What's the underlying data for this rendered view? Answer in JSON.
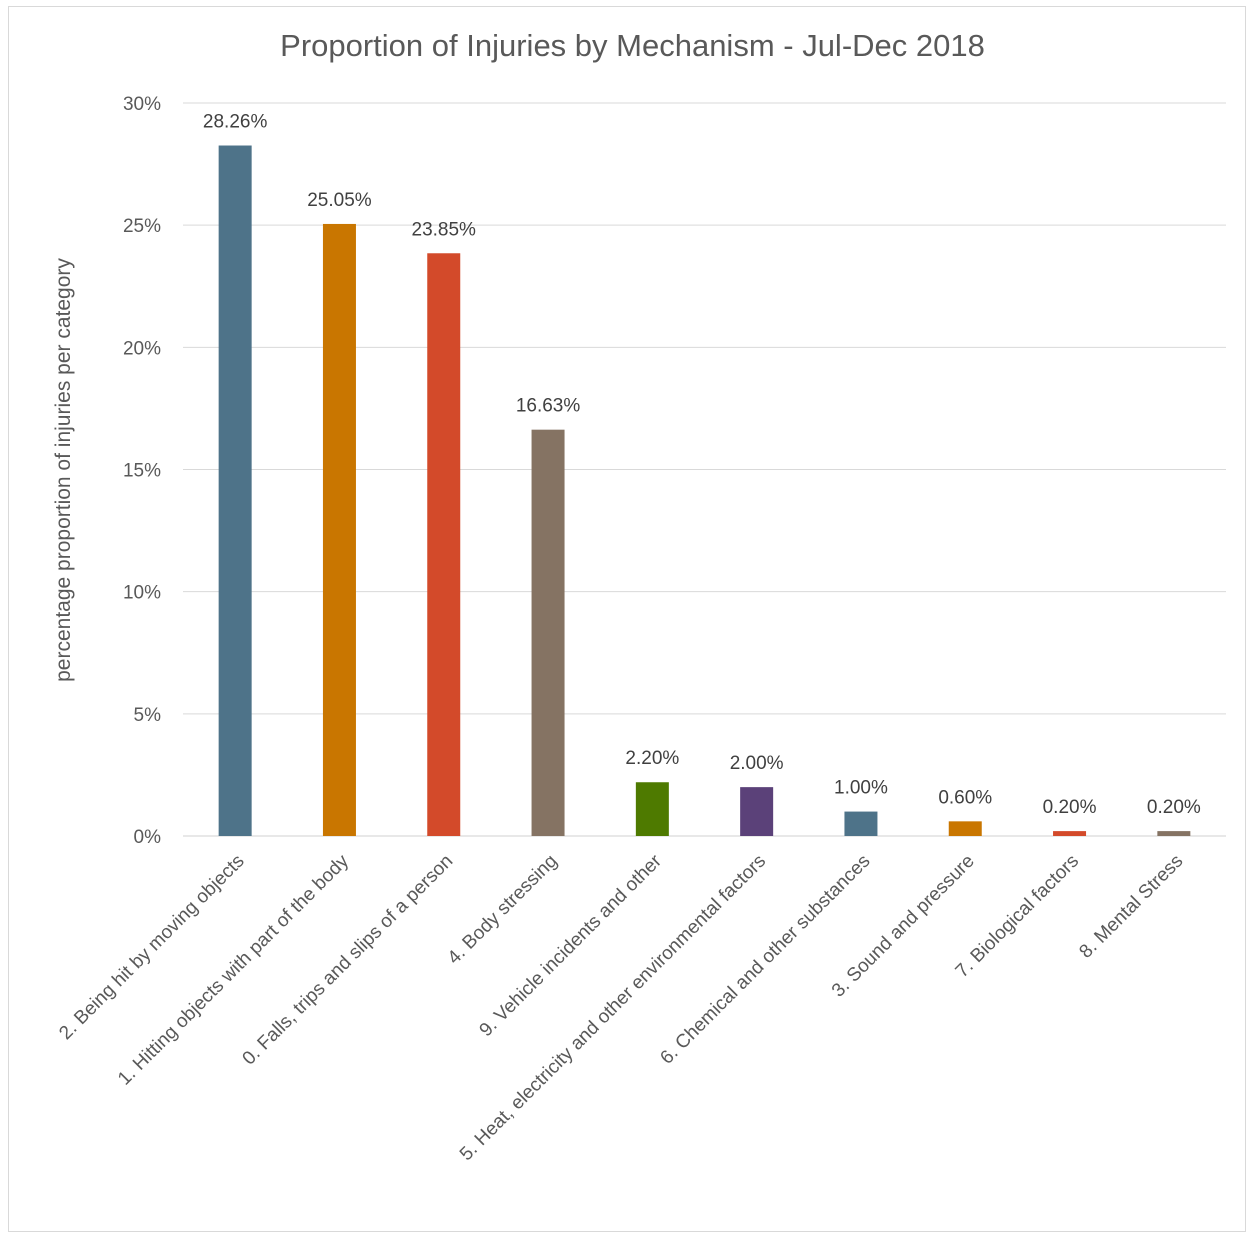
{
  "chart_data": {
    "type": "bar",
    "title": "Proportion of Injuries by Mechanism - Jul-Dec 2018",
    "xlabel": "",
    "ylabel": "percentage proportion of injuries per category",
    "ylim": [
      0,
      30
    ],
    "yticks": [
      "0%",
      "5%",
      "10%",
      "15%",
      "20%",
      "25%",
      "30%"
    ],
    "grid": true,
    "legend": "none",
    "categories": [
      "2. Being hit by moving objects",
      "1. Hitting objects with part of the body",
      "0. Falls, trips and slips of a person",
      "4. Body stressing",
      "9. Vehicle incidents and other",
      "5. Heat, electricity and other environmental factors",
      "6. Chemical and other substances",
      "3. Sound and pressure",
      "7. Biological factors",
      "8. Mental Stress"
    ],
    "values": [
      28.26,
      25.05,
      23.85,
      16.63,
      2.2,
      2.0,
      1.0,
      0.6,
      0.2,
      0.2
    ],
    "data_labels": [
      "28.26%",
      "25.05%",
      "23.85%",
      "16.63%",
      "2.20%",
      "2.00%",
      "1.00%",
      "0.60%",
      "0.20%",
      "0.20%"
    ],
    "colors": [
      "#4e7389",
      "#c97600",
      "#d34a2a",
      "#857363",
      "#4e7a00",
      "#5b4179",
      "#4e7389",
      "#c97600",
      "#d34a2a",
      "#857363"
    ]
  }
}
